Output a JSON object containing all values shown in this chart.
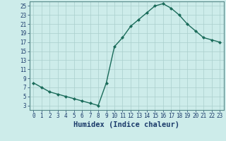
{
  "x": [
    0,
    1,
    2,
    3,
    4,
    5,
    6,
    7,
    8,
    9,
    10,
    11,
    12,
    13,
    14,
    15,
    16,
    17,
    18,
    19,
    20,
    21,
    22,
    23
  ],
  "y": [
    8,
    7,
    6,
    5.5,
    5,
    4.5,
    4,
    3.5,
    3,
    8,
    16,
    18,
    20.5,
    22,
    23.5,
    25,
    25.5,
    24.5,
    23,
    21,
    19.5,
    18,
    17.5,
    17
  ],
  "line_color": "#1a6b5a",
  "marker": "D",
  "marker_size": 2.0,
  "bg_color": "#cdecea",
  "grid_color": "#aacfcc",
  "xlabel": "Humidex (Indice chaleur)",
  "xlim": [
    -0.5,
    23.5
  ],
  "ylim": [
    2,
    26
  ],
  "yticks": [
    3,
    5,
    7,
    9,
    11,
    13,
    15,
    17,
    19,
    21,
    23,
    25
  ],
  "xticks": [
    0,
    1,
    2,
    3,
    4,
    5,
    6,
    7,
    8,
    9,
    10,
    11,
    12,
    13,
    14,
    15,
    16,
    17,
    18,
    19,
    20,
    21,
    22,
    23
  ],
  "xlabel_fontsize": 7.5,
  "tick_fontsize": 5.5,
  "line_width": 1.0,
  "xlabel_color": "#1a3a6a",
  "tick_color": "#1a3a6a",
  "spine_color": "#558888"
}
